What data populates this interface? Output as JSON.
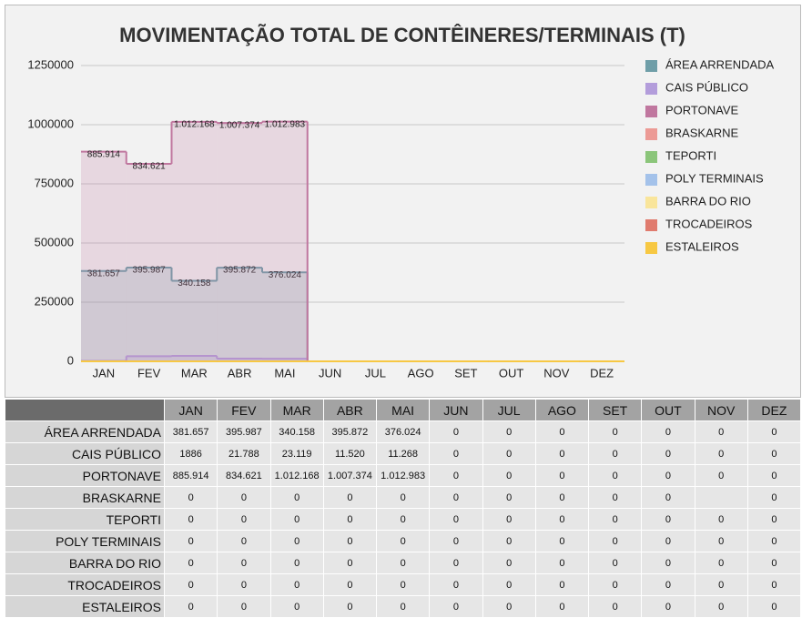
{
  "chart_data": {
    "type": "area",
    "step": true,
    "title": "MOVIMENTAÇÃO TOTAL DE CONTÊINERES/TERMINAIS (T)",
    "categories": [
      "JAN",
      "FEV",
      "MAR",
      "ABR",
      "MAI",
      "JUN",
      "JUL",
      "AGO",
      "SET",
      "OUT",
      "NOV",
      "DEZ"
    ],
    "ylim": [
      0,
      1250000
    ],
    "yticks": [
      0,
      250000,
      500000,
      750000,
      1000000,
      1250000
    ],
    "grid": true,
    "legend": "right",
    "series": [
      {
        "name": "ÁREA ARRENDADA",
        "color": "#6f9ea8",
        "labeled": true,
        "values": [
          381657,
          395987,
          340158,
          395872,
          376024,
          0,
          0,
          0,
          0,
          0,
          0,
          0
        ],
        "value_labels": [
          "381.657",
          "395.987",
          "340.158",
          "395.872",
          "376.024",
          "0",
          "0",
          "0",
          "0",
          "0",
          "0",
          "0"
        ]
      },
      {
        "name": "CAIS PÚBLICO",
        "color": "#b39ddb",
        "labeled": false,
        "values": [
          1886,
          21788,
          23119,
          11520,
          11268,
          0,
          0,
          0,
          0,
          0,
          0,
          0
        ],
        "value_labels": [
          "1886",
          "21.788",
          "23.119",
          "11.520",
          "11.268",
          "0",
          "0",
          "0",
          "0",
          "0",
          "0",
          "0"
        ]
      },
      {
        "name": "PORTONAVE",
        "color": "#c0779f",
        "labeled": true,
        "values": [
          885914,
          834621,
          1012168,
          1007374,
          1012983,
          0,
          0,
          0,
          0,
          0,
          0,
          0
        ],
        "value_labels": [
          "885.914",
          "834.621",
          "1.012.168",
          "1.007.374",
          "1.012.983",
          "0",
          "0",
          "0",
          "0",
          "0",
          "0",
          "0"
        ]
      },
      {
        "name": "BRASKARNE",
        "color": "#ec9a95",
        "labeled": false,
        "values": [
          0,
          0,
          0,
          0,
          0,
          0,
          0,
          0,
          0,
          0,
          null,
          0
        ],
        "value_labels": [
          "0",
          "0",
          "0",
          "0",
          "0",
          "0",
          "0",
          "0",
          "0",
          "0",
          null,
          "0"
        ]
      },
      {
        "name": "TEPORTI",
        "color": "#8bc57a",
        "labeled": false,
        "values": [
          0,
          0,
          0,
          0,
          0,
          0,
          0,
          0,
          0,
          0,
          0,
          0
        ],
        "value_labels": [
          "0",
          "0",
          "0",
          "0",
          "0",
          "0",
          "0",
          "0",
          "0",
          "0",
          "0",
          "0"
        ]
      },
      {
        "name": "POLY TERMINAIS",
        "color": "#a4c2ea",
        "labeled": false,
        "values": [
          0,
          0,
          0,
          0,
          0,
          0,
          0,
          0,
          0,
          0,
          0,
          0
        ],
        "value_labels": [
          "0",
          "0",
          "0",
          "0",
          "0",
          "0",
          "0",
          "0",
          "0",
          "0",
          "0",
          "0"
        ]
      },
      {
        "name": "BARRA DO RIO",
        "color": "#f9e59b",
        "labeled": false,
        "values": [
          0,
          0,
          0,
          0,
          0,
          0,
          0,
          0,
          0,
          0,
          0,
          0
        ],
        "value_labels": [
          "0",
          "0",
          "0",
          "0",
          "0",
          "0",
          "0",
          "0",
          "0",
          "0",
          "0",
          "0"
        ]
      },
      {
        "name": "TROCADEIROS",
        "color": "#e07b6e",
        "labeled": false,
        "values": [
          0,
          0,
          0,
          0,
          0,
          0,
          0,
          0,
          0,
          0,
          0,
          0
        ],
        "value_labels": [
          "0",
          "0",
          "0",
          "0",
          "0",
          "0",
          "0",
          "0",
          "0",
          "0",
          "0",
          "0"
        ]
      },
      {
        "name": "ESTALEIROS",
        "color": "#f7c843",
        "labeled": false,
        "values": [
          0,
          0,
          0,
          0,
          0,
          0,
          0,
          0,
          0,
          0,
          0,
          0
        ],
        "value_labels": [
          "0",
          "0",
          "0",
          "0",
          "0",
          "0",
          "0",
          "0",
          "0",
          "0",
          "0",
          "0"
        ]
      }
    ]
  }
}
